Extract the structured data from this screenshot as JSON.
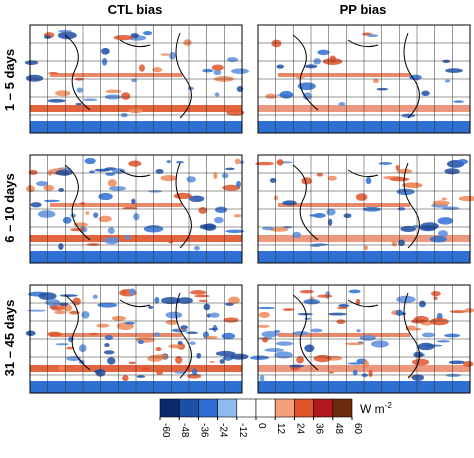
{
  "columns": [
    "CTL bias",
    "PP bias"
  ],
  "rows": [
    "1 – 5 days",
    "6 – 10 days",
    "31 – 45 days"
  ],
  "colorbar": {
    "ticks": [
      -60,
      -48,
      -36,
      -24,
      -12,
      0,
      12,
      24,
      36,
      48,
      60
    ],
    "colors": [
      "#0b2a6e",
      "#1e4fa6",
      "#2f6fd2",
      "#8fbbef",
      "#ffffff",
      "#ffffff",
      "#f5a07a",
      "#e0542a",
      "#b2181b",
      "#6b2b0c"
    ],
    "unit": {
      "base": "W m",
      "exponent": "-2"
    }
  }
}
